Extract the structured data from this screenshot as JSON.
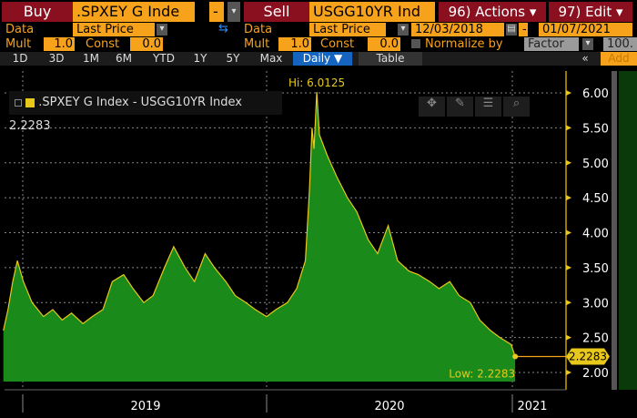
{
  "toolbar": {
    "buy": "Buy",
    "security1": ".SPXEY G Inde",
    "dash": "-",
    "sell": "Sell",
    "security2": "USGG10YR Ind",
    "actions": "96) Actions ▾",
    "edit": "97) Edit ▾",
    "data_label": "Data",
    "data_value": "Last Price",
    "data_label2": "Data",
    "data_value2": "Last Price",
    "start_date": "12/03/2018",
    "date_sep": "-",
    "end_date": "01/07/2021",
    "mult_label": "Mult",
    "mult_value": "1.0",
    "const_label": "Const",
    "const_value": "0.0",
    "mult_label2": "Mult",
    "mult_value2": "1.0",
    "const_label2": "Const",
    "const_value2": "0.0",
    "normalize_label": "Normalize by",
    "normalize_value": "Factor",
    "factor_value": "100."
  },
  "tabs": [
    "1D",
    "3D",
    "1M",
    "6M",
    "YTD",
    "1Y",
    "5Y",
    "Max"
  ],
  "period": "Daily ▼",
  "table": "Table",
  "collapse": "«",
  "add": "Add",
  "colors": {
    "area": "#1a8a1a",
    "line": "#e8c81a",
    "accent": "#f7a21b"
  },
  "chart_data": {
    "type": "area",
    "title": ".SPXEY G Index - USGG10YR Index 2.2283",
    "legend": "top-left",
    "ylim": [
      1.8,
      6.25
    ],
    "yticks": [
      "6.00",
      "5.50",
      "5.00",
      "4.50",
      "4.00",
      "3.50",
      "3.00",
      "2.50",
      "2.00"
    ],
    "xticks": [
      "2019",
      "2020",
      "2021"
    ],
    "hi_label": "Hi: 6.0125",
    "low_label": "Low: 2.2283",
    "last_label": "2.2283",
    "x": [
      "2018-12-03",
      "2018-12-10",
      "2018-12-17",
      "2018-12-24",
      "2019-01-02",
      "2019-01-15",
      "2019-02-01",
      "2019-02-15",
      "2019-03-01",
      "2019-03-15",
      "2019-04-01",
      "2019-04-15",
      "2019-05-01",
      "2019-05-15",
      "2019-06-01",
      "2019-06-15",
      "2019-07-01",
      "2019-07-15",
      "2019-08-01",
      "2019-08-15",
      "2019-09-01",
      "2019-09-15",
      "2019-10-01",
      "2019-10-15",
      "2019-11-01",
      "2019-11-15",
      "2019-12-01",
      "2019-12-15",
      "2020-01-01",
      "2020-01-15",
      "2020-02-01",
      "2020-02-15",
      "2020-02-28",
      "2020-03-05",
      "2020-03-09",
      "2020-03-12",
      "2020-03-16",
      "2020-03-20",
      "2020-04-01",
      "2020-04-15",
      "2020-05-01",
      "2020-05-15",
      "2020-06-01",
      "2020-06-15",
      "2020-07-01",
      "2020-07-15",
      "2020-08-01",
      "2020-08-15",
      "2020-09-01",
      "2020-09-15",
      "2020-10-01",
      "2020-10-15",
      "2020-11-01",
      "2020-11-15",
      "2020-12-01",
      "2020-12-15",
      "2021-01-01",
      "2021-01-07"
    ],
    "values": [
      2.6,
      2.9,
      3.3,
      3.6,
      3.3,
      3.0,
      2.8,
      2.9,
      2.75,
      2.85,
      2.7,
      2.8,
      2.9,
      3.3,
      3.4,
      3.2,
      3.0,
      3.1,
      3.5,
      3.8,
      3.5,
      3.3,
      3.7,
      3.5,
      3.3,
      3.1,
      3.0,
      2.9,
      2.8,
      2.9,
      3.0,
      3.2,
      3.6,
      4.6,
      5.5,
      5.2,
      6.0125,
      5.4,
      5.1,
      4.8,
      4.5,
      4.3,
      3.9,
      3.7,
      4.1,
      3.6,
      3.45,
      3.4,
      3.3,
      3.2,
      3.3,
      3.1,
      3.0,
      2.75,
      2.6,
      2.5,
      2.4,
      2.2283
    ]
  }
}
